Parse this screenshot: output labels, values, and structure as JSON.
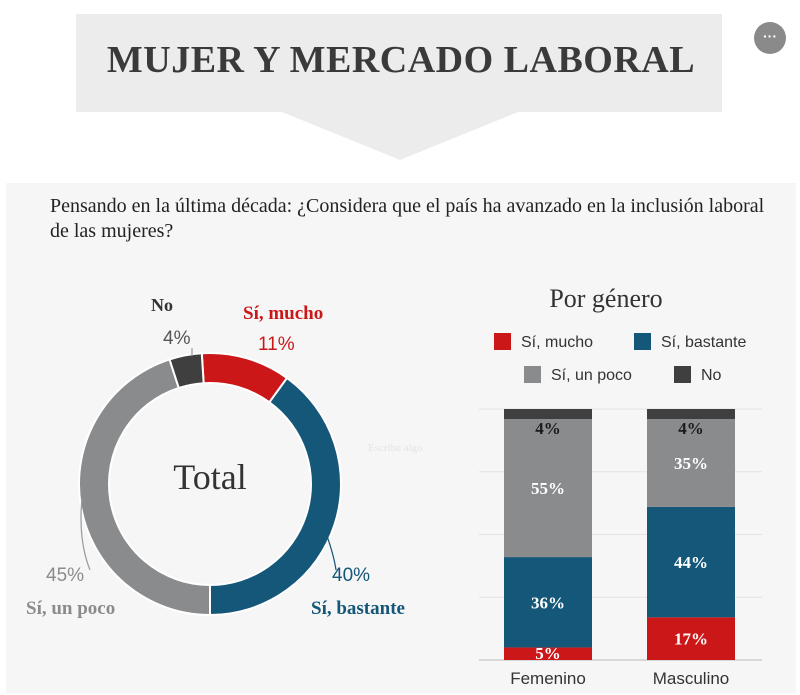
{
  "header": {
    "title": "MUJER Y MERCADO LABORAL",
    "more_label": "···"
  },
  "question": "Pensando en la última década: ¿Considera que el país ha avanzado en la inclusión laboral de las mujeres?",
  "placeholder": "Escribe algo",
  "colors": {
    "mucho": "#cc1719",
    "bastante": "#145778",
    "poco": "#8a8b8d",
    "no": "#3f3f3f"
  },
  "chart_data": [
    {
      "type": "pie",
      "center_label": "Total",
      "slices": [
        {
          "name": "Sí, mucho",
          "value": 11,
          "label": "11%",
          "color": "#cc1719"
        },
        {
          "name": "Sí, bastante",
          "value": 40,
          "label": "40%",
          "color": "#145778"
        },
        {
          "name": "Sí, un poco",
          "value": 45,
          "label": "45%",
          "color": "#8a8b8d"
        },
        {
          "name": "No",
          "value": 4,
          "label": "4%",
          "color": "#3f3f3f"
        }
      ]
    },
    {
      "type": "bar",
      "stacked": true,
      "title": "Por género",
      "categories": [
        "Femenino",
        "Masculino"
      ],
      "series": [
        {
          "name": "Sí, mucho",
          "values": [
            5,
            17
          ],
          "labels": [
            "5%",
            "17%"
          ],
          "color": "#cc1719"
        },
        {
          "name": "Sí, bastante",
          "values": [
            36,
            44
          ],
          "labels": [
            "36%",
            "44%"
          ],
          "color": "#145778"
        },
        {
          "name": "Sí, un poco",
          "values": [
            55,
            35
          ],
          "labels": [
            "55%",
            "35%"
          ],
          "color": "#8a8b8d"
        },
        {
          "name": "No",
          "values": [
            4,
            4
          ],
          "labels": [
            "4%",
            "4%"
          ],
          "color": "#3f3f3f"
        }
      ],
      "ylim": [
        0,
        100
      ],
      "grid": true,
      "legend_position": "top"
    }
  ]
}
